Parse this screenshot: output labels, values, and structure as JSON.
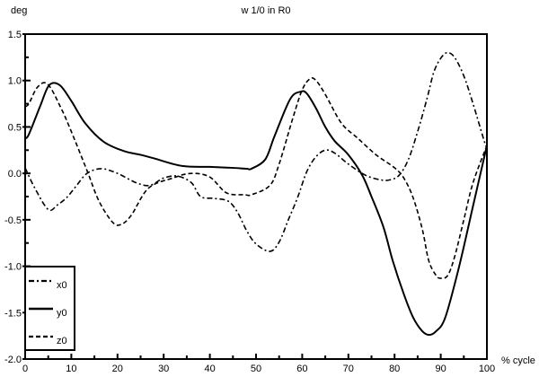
{
  "chart_data": {
    "type": "line",
    "title": "w 1/0 in R0",
    "ylabel": "deg",
    "xlabel": "% cycle",
    "xlim": [
      0,
      100
    ],
    "ylim": [
      -2.0,
      1.5
    ],
    "xticks": [
      "0",
      "10",
      "20",
      "30",
      "40",
      "50",
      "60",
      "70",
      "80",
      "90",
      "100"
    ],
    "yticks": [
      "1.5",
      "1.0",
      "0.5",
      "0.0",
      "-0.5",
      "-1.0",
      "-1.5",
      "-2.0"
    ],
    "grid": false,
    "legend_position": "bottom-left",
    "series": [
      {
        "name": "x0",
        "style": "dash-dot",
        "color": "#000000",
        "x": [
          0,
          2,
          5,
          7,
          9,
          11,
          13.4,
          16.5,
          20,
          24,
          27,
          30,
          33,
          36,
          38,
          41,
          44,
          46,
          48,
          50,
          53,
          55,
          57,
          59,
          61,
          63,
          65,
          67,
          70,
          73.7,
          77,
          79,
          81,
          83,
          85,
          87,
          88.5,
          90,
          91.4,
          93,
          95,
          97,
          99.6,
          100
        ],
        "y": [
          0.06,
          -0.15,
          -0.39,
          -0.34,
          -0.26,
          -0.14,
          0.0,
          0.05,
          0.0,
          -0.1,
          -0.13,
          -0.05,
          -0.03,
          -0.1,
          -0.25,
          -0.27,
          -0.3,
          -0.42,
          -0.62,
          -0.76,
          -0.84,
          -0.74,
          -0.5,
          -0.26,
          0.02,
          0.18,
          0.25,
          0.22,
          0.1,
          -0.02,
          -0.07,
          -0.07,
          -0.02,
          0.15,
          0.45,
          0.8,
          1.09,
          1.24,
          1.3,
          1.25,
          1.05,
          0.75,
          0.32,
          0.3
        ]
      },
      {
        "name": "y0",
        "style": "solid",
        "color": "#000000",
        "x": [
          0,
          0.8,
          3.3,
          5.2,
          7.5,
          10,
          13,
          17,
          21.4,
          25,
          28,
          34,
          40,
          44.7,
          48,
          49,
          52,
          54,
          57.4,
          59.7,
          61,
          63,
          65,
          67,
          70,
          73,
          75,
          77.6,
          79.6,
          82,
          84,
          86,
          87.5,
          89,
          91,
          94,
          97,
          100
        ],
        "y": [
          0.38,
          0.42,
          0.73,
          0.95,
          0.95,
          0.78,
          0.54,
          0.34,
          0.24,
          0.2,
          0.16,
          0.08,
          0.07,
          0.06,
          0.05,
          0.05,
          0.15,
          0.4,
          0.8,
          0.88,
          0.86,
          0.7,
          0.5,
          0.35,
          0.2,
          -0.02,
          -0.25,
          -0.58,
          -0.94,
          -1.3,
          -1.55,
          -1.7,
          -1.74,
          -1.7,
          -1.55,
          -1.0,
          -0.35,
          0.3
        ]
      },
      {
        "name": "z0",
        "style": "dashed",
        "color": "#000000",
        "x": [
          0,
          0.8,
          2.7,
          4.9,
          7.8,
          10,
          13.4,
          16,
          19,
          20.8,
          23,
          26.7,
          32,
          36,
          40,
          43.6,
          47.5,
          49,
          53,
          55,
          58,
          60,
          61.7,
          63,
          65,
          68.5,
          72,
          76,
          80,
          82,
          84,
          86,
          87.4,
          89,
          90,
          91.5,
          93,
          95,
          97,
          100
        ],
        "y": [
          0.72,
          0.75,
          0.93,
          0.96,
          0.7,
          0.45,
          0.03,
          -0.3,
          -0.53,
          -0.55,
          -0.45,
          -0.16,
          -0.05,
          0.0,
          -0.04,
          -0.21,
          -0.23,
          -0.23,
          -0.13,
          0.1,
          0.6,
          0.9,
          1.02,
          1.0,
          0.85,
          0.54,
          0.38,
          0.2,
          0.06,
          -0.05,
          -0.26,
          -0.6,
          -0.94,
          -1.1,
          -1.13,
          -1.1,
          -0.9,
          -0.5,
          -0.1,
          0.3
        ]
      }
    ]
  }
}
